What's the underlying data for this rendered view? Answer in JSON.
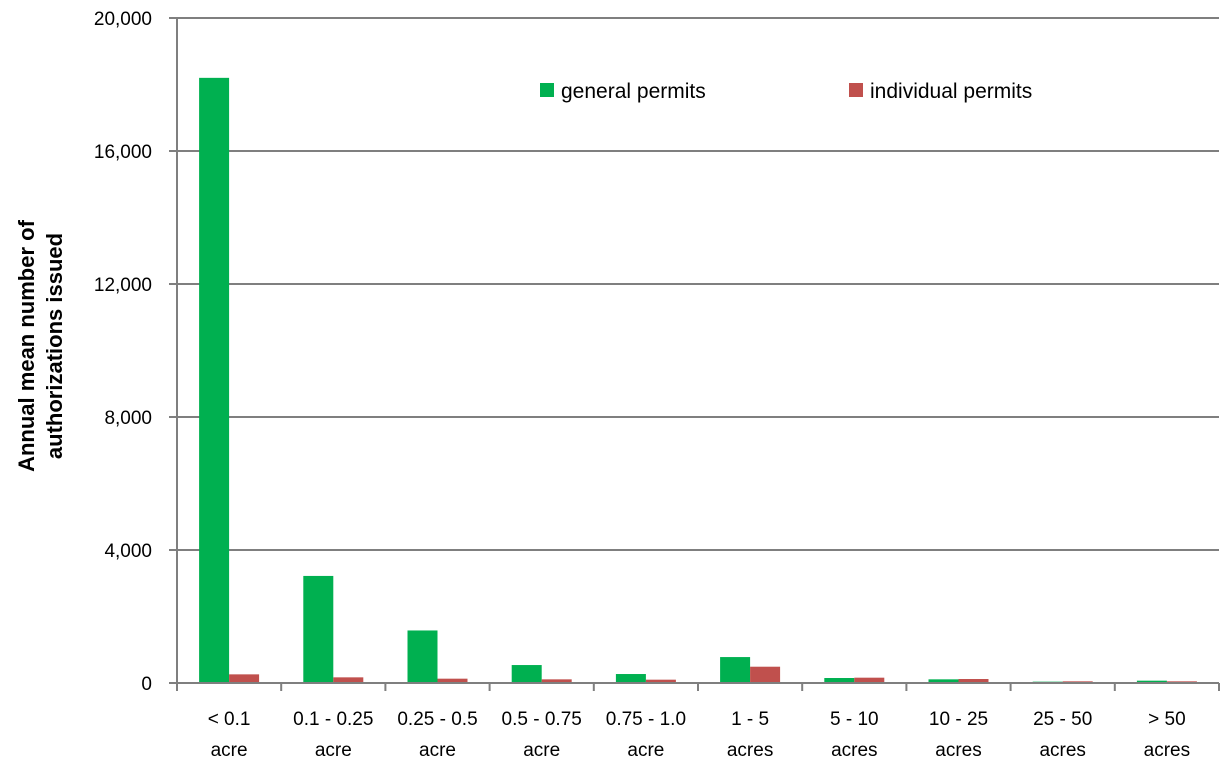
{
  "chart_data": {
    "type": "bar",
    "title": "",
    "xlabel": "",
    "ylabel": "Annual mean number of authorizations issued",
    "ylabel_lines": [
      "Annual mean number of",
      "authorizations issued"
    ],
    "ylim": [
      0,
      20000
    ],
    "yticks": [
      0,
      4000,
      8000,
      12000,
      16000,
      20000
    ],
    "ytick_labels": [
      "0",
      "4,000",
      "8,000",
      "12,000",
      "16,000",
      "20,000"
    ],
    "grid": true,
    "legend_position": "top-center",
    "categories": [
      [
        "< 0.1",
        "acre"
      ],
      [
        "0.1 - 0.25",
        "acre"
      ],
      [
        "0.25 - 0.5",
        "acre"
      ],
      [
        "0.5 - 0.75",
        "acre"
      ],
      [
        "0.75 - 1.0",
        "acre"
      ],
      [
        "1 - 5",
        "acres"
      ],
      [
        "5 - 10",
        "acres"
      ],
      [
        "10 - 25",
        "acres"
      ],
      [
        "25 - 50",
        "acres"
      ],
      [
        "> 50",
        "acres"
      ]
    ],
    "series": [
      {
        "name": "general permits",
        "color": "#00b050",
        "values": [
          18200,
          3220,
          1580,
          540,
          270,
          780,
          150,
          110,
          40,
          70
        ]
      },
      {
        "name": "individual permits",
        "color": "#c0504d",
        "values": [
          260,
          170,
          130,
          110,
          100,
          490,
          160,
          120,
          50,
          50
        ]
      }
    ]
  }
}
